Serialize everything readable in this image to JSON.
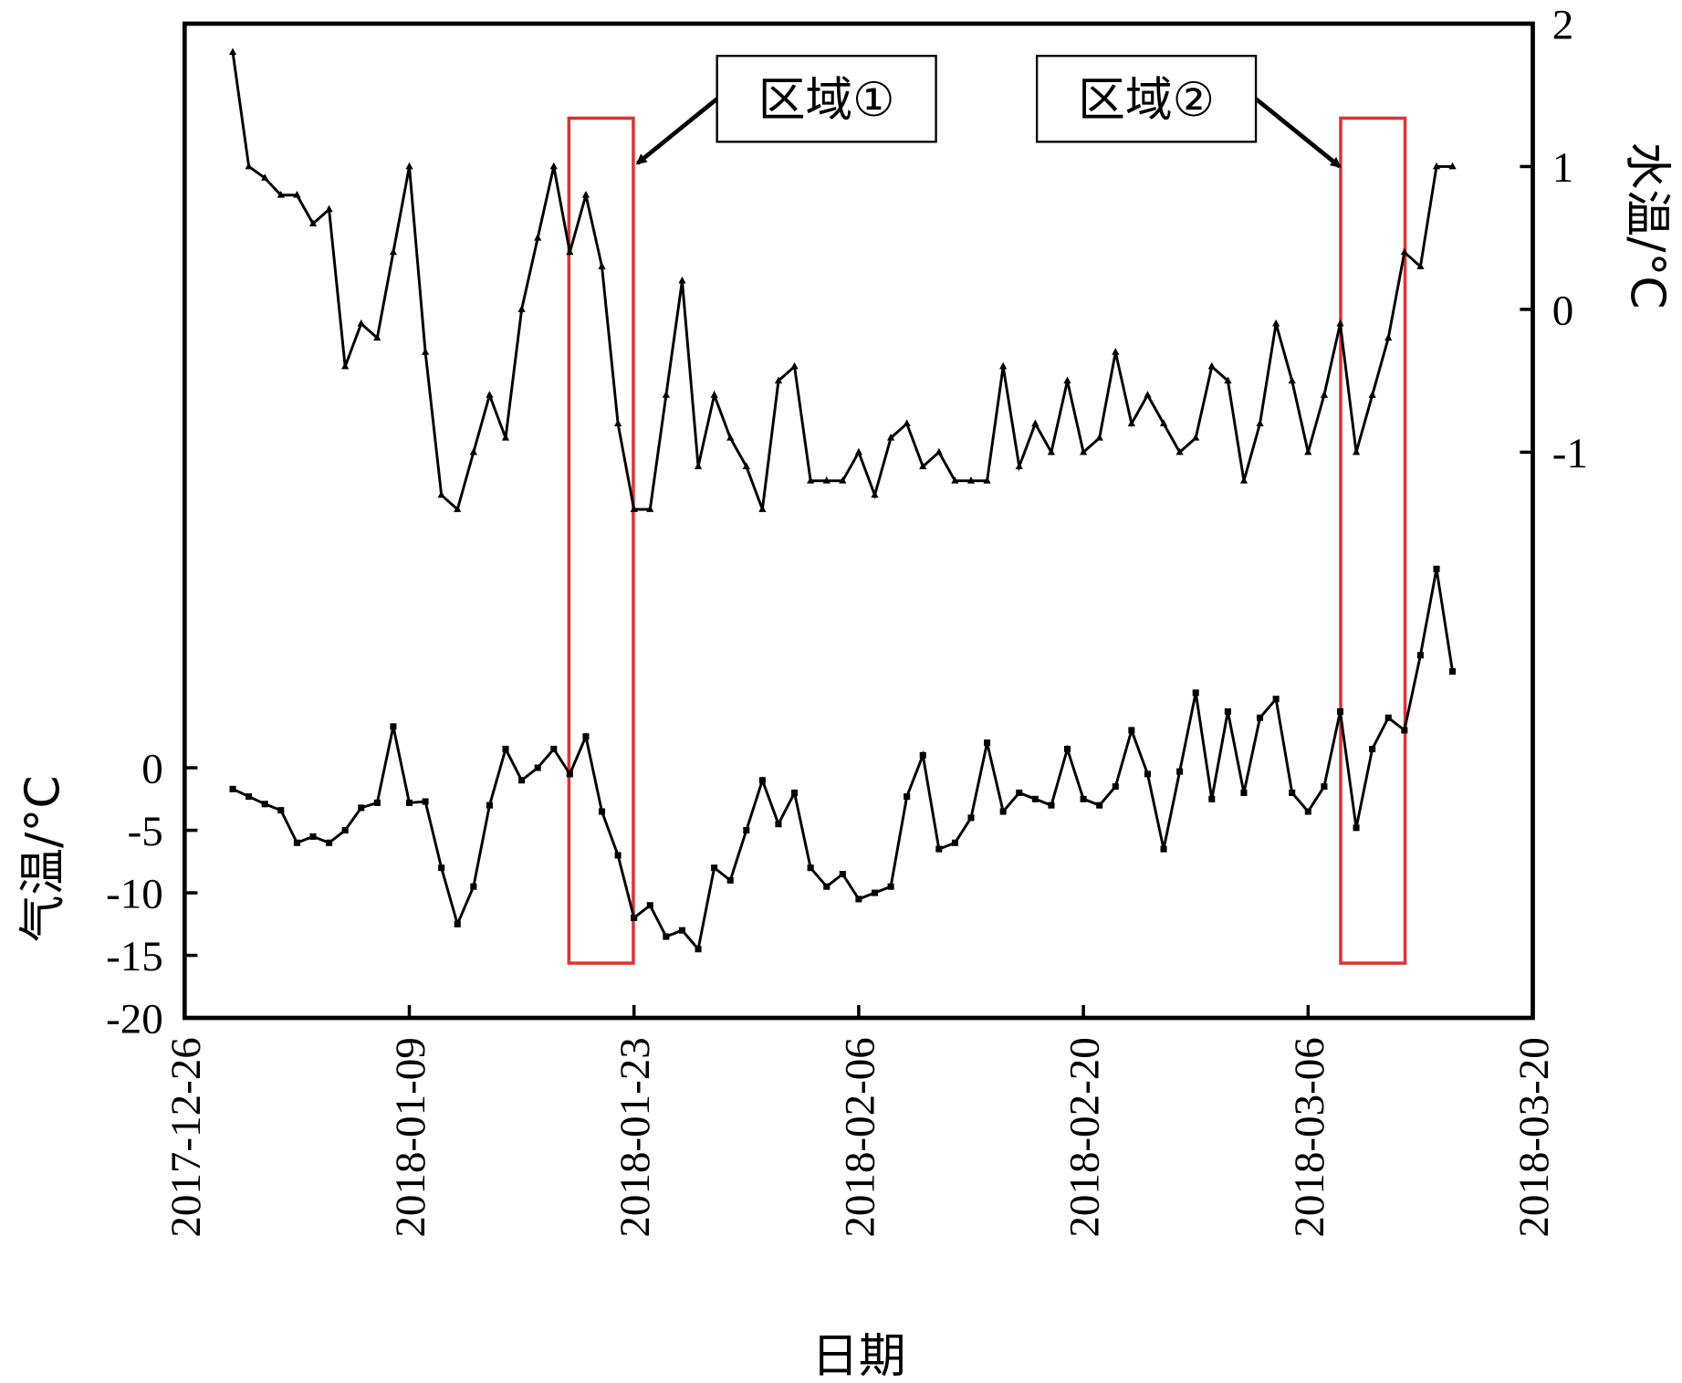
{
  "chart_data": {
    "type": "line",
    "xlabel": "日期",
    "ylabel": "气温/°C",
    "y2label": "水温/°C",
    "x": [
      "2017-12-29",
      "2017-12-30",
      "2017-12-31",
      "2018-01-01",
      "2018-01-02",
      "2018-01-03",
      "2018-01-04",
      "2018-01-05",
      "2018-01-06",
      "2018-01-07",
      "2018-01-08",
      "2018-01-09",
      "2018-01-10",
      "2018-01-11",
      "2018-01-12",
      "2018-01-13",
      "2018-01-14",
      "2018-01-15",
      "2018-01-16",
      "2018-01-17",
      "2018-01-18",
      "2018-01-19",
      "2018-01-20",
      "2018-01-21",
      "2018-01-22",
      "2018-01-23",
      "2018-01-24",
      "2018-01-25",
      "2018-01-26",
      "2018-01-27",
      "2018-01-28",
      "2018-01-29",
      "2018-01-30",
      "2018-01-31",
      "2018-02-01",
      "2018-02-02",
      "2018-02-03",
      "2018-02-04",
      "2018-02-05",
      "2018-02-06",
      "2018-02-07",
      "2018-02-08",
      "2018-02-09",
      "2018-02-10",
      "2018-02-11",
      "2018-02-12",
      "2018-02-13",
      "2018-02-14",
      "2018-02-15",
      "2018-02-16",
      "2018-02-17",
      "2018-02-18",
      "2018-02-19",
      "2018-02-20",
      "2018-02-21",
      "2018-02-22",
      "2018-02-23",
      "2018-02-24",
      "2018-02-25",
      "2018-02-26",
      "2018-02-27",
      "2018-02-28",
      "2018-03-01",
      "2018-03-02",
      "2018-03-03",
      "2018-03-04",
      "2018-03-05",
      "2018-03-06",
      "2018-03-07",
      "2018-03-08",
      "2018-03-09",
      "2018-03-10",
      "2018-03-11",
      "2018-03-12",
      "2018-03-13",
      "2018-03-14",
      "2018-03-15"
    ],
    "series": [
      {
        "color": "#000000",
        "marker": "square",
        "values": [
          -1.7,
          -2.3,
          -2.9,
          -3.4,
          -6.0,
          -5.5,
          -6.0,
          -5.0,
          -3.2,
          -2.8,
          3.3,
          -2.8,
          -2.7,
          -8.0,
          -12.5,
          -9.5,
          -3.0,
          1.5,
          -1.0,
          0.0,
          1.5,
          -0.5,
          2.5,
          -3.5,
          -7.0,
          -12.0,
          -11.0,
          -13.5,
          -13.0,
          -14.5,
          -8.0,
          -9.0,
          -5.0,
          -1.0,
          -4.5,
          -2.0,
          -8.0,
          -9.5,
          -8.5,
          -10.5,
          -10.0,
          -9.5,
          -2.3,
          1.0,
          -6.5,
          -6.0,
          -4.0,
          2.0,
          -3.5,
          -2.0,
          -2.5,
          -3.0,
          1.5,
          -2.5,
          -3.0,
          -1.5,
          3.0,
          -0.5,
          -6.5,
          -0.3,
          6.0,
          -2.5,
          4.5,
          -2.0,
          4.0,
          5.5,
          -2.0,
          -3.5,
          -1.5,
          4.5,
          -4.8,
          1.5,
          4.0,
          3.0,
          9.0,
          15.9,
          7.7
        ]
      },
      {
        "color": "#000000",
        "marker": "triangle",
        "axis": "y2",
        "values": [
          1.8,
          1.0,
          0.92,
          0.8,
          0.8,
          0.6,
          0.7,
          -0.4,
          -0.1,
          -0.2,
          0.4,
          1.0,
          -0.3,
          -1.3,
          -1.4,
          -1.0,
          -0.6,
          -0.9,
          0.0,
          0.5,
          1.0,
          0.4,
          0.8,
          0.3,
          -0.8,
          -1.4,
          -1.4,
          -0.6,
          0.2,
          -1.1,
          -0.6,
          -0.9,
          -1.1,
          -1.4,
          -0.5,
          -0.4,
          -1.2,
          -1.2,
          -1.2,
          -1.0,
          -1.3,
          -0.9,
          -0.8,
          -1.1,
          -1.0,
          -1.2,
          -1.2,
          -1.2,
          -0.4,
          -1.1,
          -0.8,
          -1.0,
          -0.5,
          -1.0,
          -0.9,
          -0.3,
          -0.8,
          -0.6,
          -0.8,
          -1.0,
          -0.9,
          -0.4,
          -0.5,
          -1.2,
          -0.8,
          -0.1,
          -0.5,
          -1.0,
          -0.6,
          -0.1,
          -1.0,
          -0.6,
          -0.2,
          0.4,
          0.3,
          1.0,
          1.0
        ]
      }
    ],
    "xlim": [
      "2017-12-26",
      "2018-03-20"
    ],
    "xticks": [
      "2017-12-26",
      "2018-01-09",
      "2018-01-23",
      "2018-02-06",
      "2018-02-20",
      "2018-03-06",
      "2018-03-20"
    ],
    "ylim": [
      -20,
      59.5
    ],
    "yticks": [
      -20,
      -15,
      -10,
      -5,
      0
    ],
    "y2lim": [
      -4.96,
      2
    ],
    "y2ticks": [
      -1,
      0,
      1,
      2
    ],
    "annotations": [
      {
        "text": "区域①"
      },
      {
        "text": "区域②"
      }
    ]
  }
}
